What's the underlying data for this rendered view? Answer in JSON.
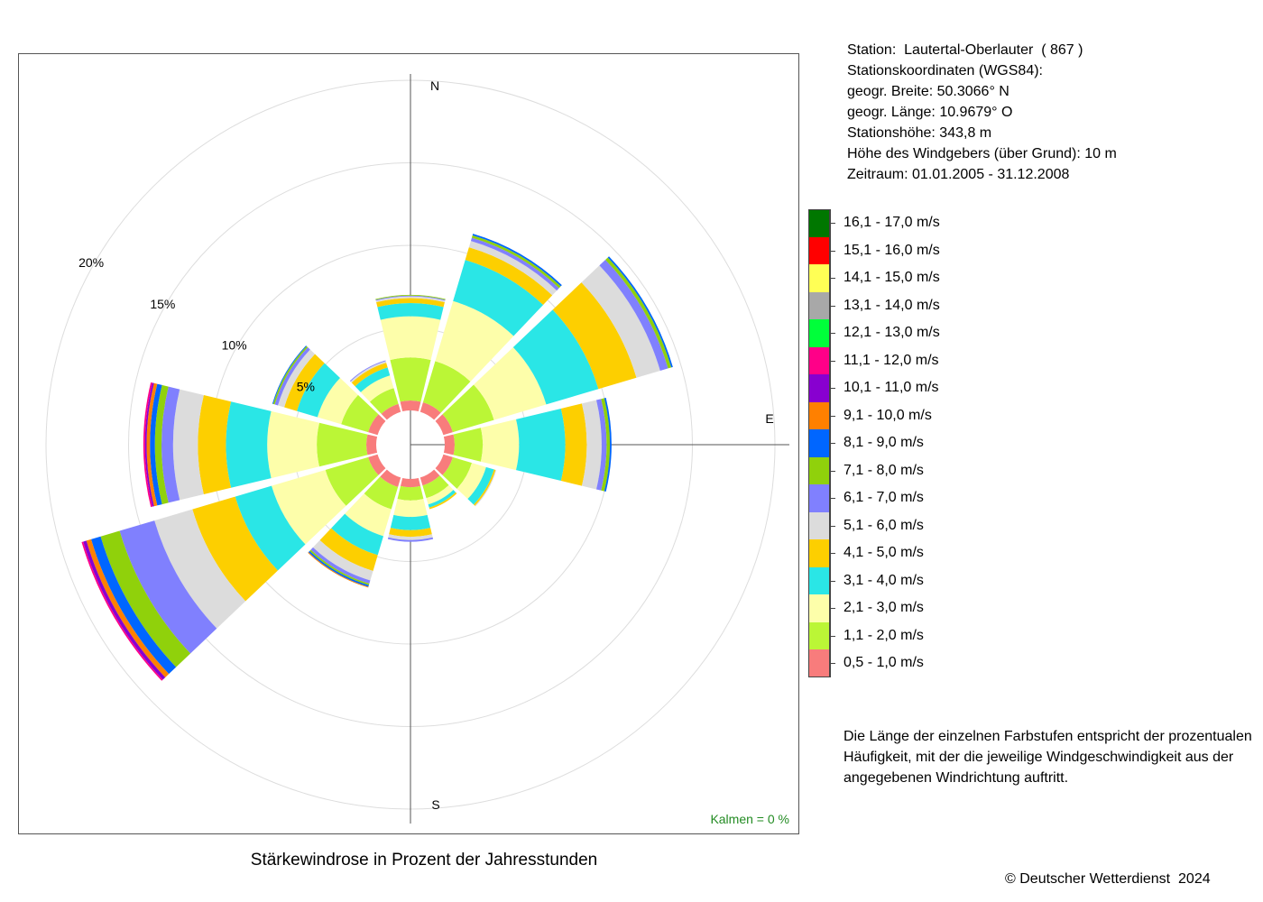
{
  "station_info": [
    "Station:  Lautertal-Oberlauter  ( 867 )",
    "Stationskoordinaten (WGS84):",
    "geogr. Breite: 50.3066° N",
    "geogr. Länge: 10.9679° O",
    "Stationshöhe: 343,8 m",
    "Höhe des Windgebers (über Grund): 10 m",
    "Zeitraum: 01.01.2005 - 31.12.2008"
  ],
  "note": [
    "Die Länge der einzelnen Farbstufen entspricht der prozentualen",
    "Häufigkeit, mit der die jeweilige Windgeschwindigkeit aus der",
    "angegebenen Windrichtung auftritt."
  ],
  "copyright": "© Deutscher Wetterdienst  2024",
  "chart_data": {
    "type": "windrose",
    "title": "Stärkewindrose in Prozent der Jahresstunden",
    "calm_label": "Kalmen  =  0 %",
    "compass_labels": {
      "N": "N",
      "E": "E",
      "S": "S"
    },
    "radial_axis": {
      "max": 20,
      "ticks": [
        5,
        10,
        15,
        20
      ],
      "tick_labels": [
        "5%",
        "10%",
        "15%",
        "20%"
      ],
      "tick_angle_deg": 300
    },
    "directions_deg": [
      0,
      30,
      60,
      90,
      120,
      150,
      180,
      210,
      240,
      270,
      300,
      330
    ],
    "classes": [
      {
        "label": "0,5 - 1,0 m/s",
        "color": "#f87c7c"
      },
      {
        "label": "1,1 - 2,0 m/s",
        "color": "#bbf636"
      },
      {
        "label": "2,1 - 3,0 m/s",
        "color": "#fdfeaa"
      },
      {
        "label": "3,1 - 4,0 m/s",
        "color": "#2ae6e6"
      },
      {
        "label": "4,1 - 5,0 m/s",
        "color": "#fdcf00"
      },
      {
        "label": "5,1 - 6,0 m/s",
        "color": "#dcdcdc"
      },
      {
        "label": "6,1 - 7,0 m/s",
        "color": "#8080fe"
      },
      {
        "label": "7,1 - 8,0 m/s",
        "color": "#90d10b"
      },
      {
        "label": "8,1 - 9,0 m/s",
        "color": "#0066ff"
      },
      {
        "label": "9,1 - 10,0 m/s",
        "color": "#ff8000"
      },
      {
        "label": "10,1 - 11,0 m/s",
        "color": "#8800d0"
      },
      {
        "label": "11,1 - 12,0 m/s",
        "color": "#ff0088"
      },
      {
        "label": "12,1 - 13,0 m/s",
        "color": "#00ff3a"
      },
      {
        "label": "13,1 - 14,0 m/s",
        "color": "#a8a8a8"
      },
      {
        "label": "14,1 - 15,0 m/s",
        "color": "#ffff55"
      },
      {
        "label": "15,1 - 16,0 m/s",
        "color": "#ff0000"
      },
      {
        "label": "16,1 - 17,0 m/s",
        "color": "#007700"
      }
    ],
    "series": [
      {
        "dir": 0,
        "values": [
          0.6,
          2.6,
          2.5,
          0.8,
          0.3,
          0.1,
          0.05,
          0.05
        ]
      },
      {
        "dir": 30,
        "values": [
          0.6,
          2.6,
          3.8,
          2.6,
          0.8,
          0.4,
          0.2,
          0.15,
          0.1
        ]
      },
      {
        "dir": 60,
        "values": [
          0.6,
          2.6,
          3.3,
          3.3,
          2.4,
          1.5,
          0.5,
          0.2,
          0.1
        ]
      },
      {
        "dir": 90,
        "values": [
          0.6,
          1.7,
          2.2,
          2.8,
          1.3,
          0.9,
          0.3,
          0.2,
          0.1
        ]
      },
      {
        "dir": 120,
        "values": [
          0.6,
          1.2,
          0.9,
          0.5,
          0.1,
          0.05
        ]
      },
      {
        "dir": 150,
        "values": [
          0.5,
          0.8,
          0.4,
          0.2,
          0.1
        ]
      },
      {
        "dir": 180,
        "values": [
          0.5,
          0.8,
          1.0,
          0.8,
          0.4,
          0.2,
          0.1
        ]
      },
      {
        "dir": 210,
        "values": [
          0.6,
          1.4,
          1.7,
          1.2,
          1.0,
          0.6,
          0.2,
          0.1,
          0.1,
          0.05
        ]
      },
      {
        "dir": 240,
        "values": [
          0.6,
          2.7,
          3.4,
          2.3,
          2.7,
          2.4,
          2.2,
          1.2,
          0.6,
          0.3,
          0.2,
          0.1
        ]
      },
      {
        "dir": 270,
        "values": [
          0.6,
          3.0,
          3.0,
          2.5,
          1.7,
          1.5,
          0.7,
          0.4,
          0.3,
          0.2,
          0.1,
          0.1
        ]
      },
      {
        "dir": 300,
        "values": [
          0.6,
          1.7,
          1.5,
          1.3,
          0.8,
          0.4,
          0.2,
          0.1,
          0.05
        ]
      },
      {
        "dir": 330,
        "values": [
          0.5,
          1.0,
          0.8,
          0.5,
          0.3,
          0.1,
          0.05
        ]
      }
    ]
  }
}
